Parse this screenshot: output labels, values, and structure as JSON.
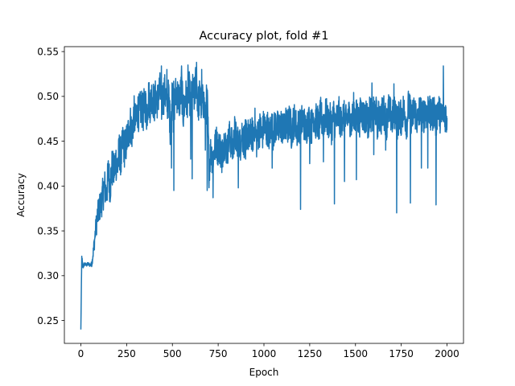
{
  "chart_data": {
    "type": "line",
    "title": "Accuracy plot, fold #1",
    "xlabel": "Epoch",
    "ylabel": "Accuracy",
    "xlim": [
      -90,
      2090
    ],
    "ylim": [
      0.2245,
      0.5555
    ],
    "xticks": [
      0,
      250,
      500,
      750,
      1000,
      1250,
      1500,
      1750,
      2000
    ],
    "yticks": [
      0.25,
      0.3,
      0.35,
      0.4,
      0.45,
      0.5,
      0.55
    ],
    "ytick_labels": [
      "0.25",
      "0.30",
      "0.35",
      "0.40",
      "0.45",
      "0.50",
      "0.55"
    ],
    "grid": false,
    "line_color": "#1f77b4",
    "series": [
      {
        "x": [
          0,
          5,
          10,
          20,
          30,
          40,
          50,
          60,
          70,
          80,
          90,
          100,
          110,
          120,
          130,
          140,
          150,
          160,
          170,
          180,
          190,
          200,
          210,
          220,
          230,
          240,
          250,
          260,
          270,
          280,
          290,
          300,
          310,
          320,
          330,
          340,
          350,
          360,
          370,
          380,
          390,
          400,
          410,
          420,
          430,
          440,
          450,
          460,
          470,
          480,
          490,
          500,
          510,
          520,
          530,
          540,
          550,
          560,
          570,
          580,
          590,
          600,
          610,
          620,
          630,
          640,
          650,
          660,
          670,
          680,
          690,
          700,
          710,
          720,
          730,
          740,
          750,
          760,
          770,
          780,
          790,
          800,
          810,
          820,
          830,
          840,
          850,
          860,
          870,
          880,
          890,
          900,
          910,
          920,
          930,
          940,
          950,
          960,
          970,
          980,
          990,
          1000,
          1010,
          1020,
          1030,
          1040,
          1050,
          1060,
          1070,
          1080,
          1090,
          1100,
          1110,
          1120,
          1130,
          1140,
          1150,
          1160,
          1170,
          1180,
          1190,
          1200,
          1210,
          1220,
          1230,
          1240,
          1250,
          1260,
          1270,
          1280,
          1290,
          1300,
          1310,
          1320,
          1330,
          1340,
          1350,
          1360,
          1370,
          1380,
          1390,
          1400,
          1410,
          1420,
          1430,
          1440,
          1450,
          1460,
          1470,
          1480,
          1490,
          1500,
          1510,
          1520,
          1530,
          1540,
          1550,
          1560,
          1570,
          1580,
          1590,
          1600,
          1610,
          1620,
          1630,
          1640,
          1650,
          1660,
          1670,
          1680,
          1690,
          1700,
          1710,
          1720,
          1730,
          1740,
          1750,
          1760,
          1770,
          1780,
          1790,
          1800,
          1810,
          1820,
          1830,
          1840,
          1850,
          1860,
          1870,
          1880,
          1890,
          1900,
          1910,
          1920,
          1930,
          1940,
          1950,
          1960,
          1970,
          1980,
          1990,
          2000
        ],
        "y": [
          0.24,
          0.32,
          0.31,
          0.313,
          0.312,
          0.313,
          0.312,
          0.313,
          0.33,
          0.35,
          0.365,
          0.375,
          0.38,
          0.39,
          0.4,
          0.39,
          0.415,
          0.4,
          0.42,
          0.415,
          0.43,
          0.42,
          0.44,
          0.43,
          0.45,
          0.44,
          0.45,
          0.46,
          0.47,
          0.46,
          0.48,
          0.47,
          0.485,
          0.48,
          0.49,
          0.48,
          0.495,
          0.48,
          0.5,
          0.49,
          0.505,
          0.49,
          0.5,
          0.495,
          0.51,
          0.49,
          0.5,
          0.505,
          0.49,
          0.5,
          0.46,
          0.51,
          0.49,
          0.505,
          0.5,
          0.495,
          0.51,
          0.48,
          0.5,
          0.495,
          0.51,
          0.49,
          0.505,
          0.5,
          0.52,
          0.49,
          0.5,
          0.49,
          0.495,
          0.48,
          0.5,
          0.42,
          0.44,
          0.43,
          0.44,
          0.45,
          0.44,
          0.445,
          0.43,
          0.45,
          0.445,
          0.44,
          0.455,
          0.45,
          0.44,
          0.46,
          0.45,
          0.455,
          0.445,
          0.46,
          0.45,
          0.455,
          0.46,
          0.45,
          0.46,
          0.455,
          0.47,
          0.45,
          0.46,
          0.465,
          0.455,
          0.47,
          0.46,
          0.465,
          0.455,
          0.47,
          0.46,
          0.465,
          0.47,
          0.46,
          0.47,
          0.465,
          0.46,
          0.47,
          0.465,
          0.475,
          0.46,
          0.47,
          0.475,
          0.46,
          0.47,
          0.465,
          0.475,
          0.47,
          0.46,
          0.475,
          0.47,
          0.465,
          0.48,
          0.47,
          0.475,
          0.465,
          0.48,
          0.47,
          0.475,
          0.48,
          0.47,
          0.475,
          0.465,
          0.48,
          0.47,
          0.475,
          0.48,
          0.47,
          0.48,
          0.475,
          0.47,
          0.48,
          0.475,
          0.47,
          0.485,
          0.475,
          0.48,
          0.47,
          0.485,
          0.48,
          0.475,
          0.48,
          0.47,
          0.485,
          0.475,
          0.48,
          0.485,
          0.47,
          0.48,
          0.475,
          0.485,
          0.48,
          0.47,
          0.485,
          0.48,
          0.475,
          0.48,
          0.485,
          0.47,
          0.48,
          0.475,
          0.485,
          0.48,
          0.47,
          0.49,
          0.48,
          0.475,
          0.485,
          0.48,
          0.47,
          0.485,
          0.48,
          0.475,
          0.485,
          0.48,
          0.49,
          0.475,
          0.48,
          0.485,
          0.47,
          0.49,
          0.48,
          0.475,
          0.485,
          0.48,
          0.475
        ],
        "spread": [
          0,
          0.005,
          0.004,
          0.002,
          0.002,
          0.002,
          0.002,
          0.003,
          0.008,
          0.012,
          0.015,
          0.016,
          0.018,
          0.02,
          0.02,
          0.02,
          0.022,
          0.022,
          0.022,
          0.022,
          0.022,
          0.022,
          0.022,
          0.022,
          0.022,
          0.022,
          0.022,
          0.022,
          0.022,
          0.022,
          0.022,
          0.022,
          0.022,
          0.022,
          0.022,
          0.022,
          0.022,
          0.022,
          0.022,
          0.022,
          0.022,
          0.022,
          0.022,
          0.022,
          0.022,
          0.022,
          0.022,
          0.022,
          0.022,
          0.022,
          0.022,
          0.022,
          0.022,
          0.022,
          0.022,
          0.022,
          0.022,
          0.022,
          0.022,
          0.022,
          0.022,
          0.022,
          0.022,
          0.022,
          0.022,
          0.022,
          0.022,
          0.022,
          0.022,
          0.022,
          0.022,
          0.022,
          0.02,
          0.02,
          0.02,
          0.02,
          0.02,
          0.02,
          0.02,
          0.02,
          0.02,
          0.02,
          0.02,
          0.02,
          0.02,
          0.02,
          0.02,
          0.02,
          0.02,
          0.02,
          0.02,
          0.02,
          0.02,
          0.02,
          0.02,
          0.02,
          0.02,
          0.02,
          0.02,
          0.02,
          0.02,
          0.02,
          0.02,
          0.02,
          0.02,
          0.02,
          0.02,
          0.02,
          0.02,
          0.02,
          0.02,
          0.02,
          0.02,
          0.02,
          0.02,
          0.02,
          0.02,
          0.02,
          0.02,
          0.02,
          0.02,
          0.02,
          0.02,
          0.02,
          0.02,
          0.02,
          0.02,
          0.02,
          0.02,
          0.02,
          0.02,
          0.02,
          0.02,
          0.02,
          0.02,
          0.02,
          0.02,
          0.02,
          0.02,
          0.02,
          0.02,
          0.02,
          0.02,
          0.02,
          0.02,
          0.02,
          0.02,
          0.02,
          0.02,
          0.02,
          0.02,
          0.02,
          0.02,
          0.02,
          0.02,
          0.02,
          0.02,
          0.02,
          0.02,
          0.02,
          0.02,
          0.02,
          0.02,
          0.02,
          0.02,
          0.02,
          0.02,
          0.02,
          0.02,
          0.02,
          0.02,
          0.02,
          0.02,
          0.02,
          0.02,
          0.02,
          0.02,
          0.02,
          0.02,
          0.02,
          0.02,
          0.02,
          0.02,
          0.02,
          0.02,
          0.02,
          0.02,
          0.02,
          0.02,
          0.02,
          0.02,
          0.02,
          0.02,
          0.02,
          0.02,
          0.02,
          0.02,
          0.02,
          0.02,
          0.02,
          0.02,
          0.02,
          0.02,
          0.02,
          0.02
        ],
        "dips": [
          {
            "x": 495,
            "y": 0.42
          },
          {
            "x": 505,
            "y": 0.46
          },
          {
            "x": 508,
            "y": 0.395
          },
          {
            "x": 600,
            "y": 0.43
          },
          {
            "x": 608,
            "y": 0.408
          },
          {
            "x": 680,
            "y": 0.44
          },
          {
            "x": 690,
            "y": 0.395
          },
          {
            "x": 710,
            "y": 0.43
          },
          {
            "x": 722,
            "y": 0.387
          },
          {
            "x": 770,
            "y": 0.415
          },
          {
            "x": 860,
            "y": 0.398
          },
          {
            "x": 900,
            "y": 0.43
          },
          {
            "x": 1045,
            "y": 0.42
          },
          {
            "x": 1200,
            "y": 0.374
          },
          {
            "x": 1250,
            "y": 0.425
          },
          {
            "x": 1325,
            "y": 0.427
          },
          {
            "x": 1385,
            "y": 0.38
          },
          {
            "x": 1440,
            "y": 0.405
          },
          {
            "x": 1505,
            "y": 0.407
          },
          {
            "x": 1600,
            "y": 0.435
          },
          {
            "x": 1665,
            "y": 0.44
          },
          {
            "x": 1725,
            "y": 0.37
          },
          {
            "x": 1800,
            "y": 0.381
          },
          {
            "x": 1860,
            "y": 0.42
          },
          {
            "x": 1895,
            "y": 0.42
          },
          {
            "x": 1940,
            "y": 0.379
          }
        ],
        "peaks": [
          {
            "x": 440,
            "y": 0.534
          },
          {
            "x": 470,
            "y": 0.53
          },
          {
            "x": 550,
            "y": 0.534
          },
          {
            "x": 585,
            "y": 0.535
          },
          {
            "x": 632,
            "y": 0.538
          },
          {
            "x": 660,
            "y": 0.53
          },
          {
            "x": 1980,
            "y": 0.534
          },
          {
            "x": 1710,
            "y": 0.514
          },
          {
            "x": 1590,
            "y": 0.515
          }
        ]
      }
    ]
  }
}
